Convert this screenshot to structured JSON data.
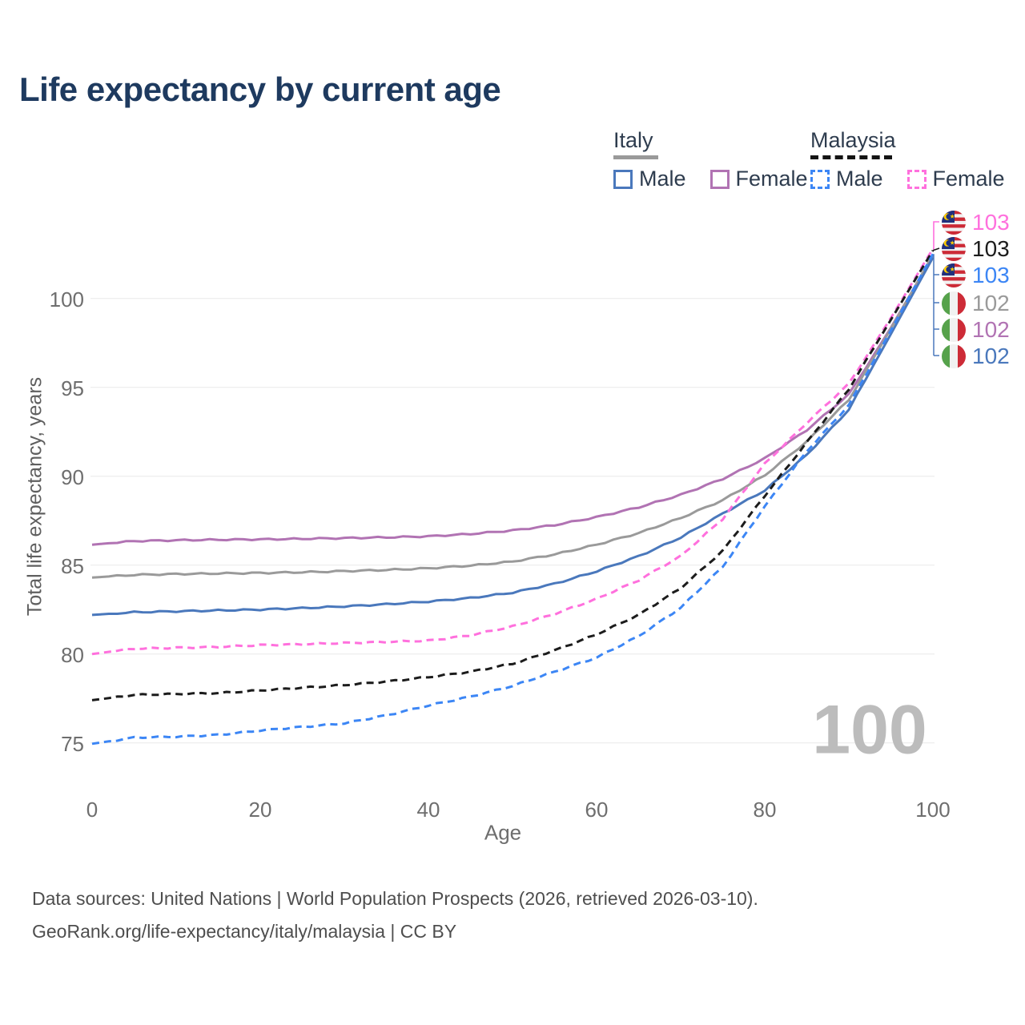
{
  "title": "Life expectancy by current age",
  "legend": {
    "italy": {
      "label": "Italy",
      "male": "Male",
      "female": "Female"
    },
    "malaysia": {
      "label": "Malaysia",
      "male": "Male",
      "female": "Female"
    }
  },
  "axes": {
    "y_title": "Total life expectancy, years",
    "x_title": "Age",
    "y_tick_labels": [
      "100",
      "95",
      "90",
      "85",
      "80",
      "75"
    ],
    "x_tick_labels": [
      "0",
      "20",
      "40",
      "60",
      "80",
      "100"
    ]
  },
  "watermark": "100",
  "end_labels": [
    {
      "value": "103",
      "series": "Malaysia Female",
      "flag": "malaysia",
      "color": "#ff70dd"
    },
    {
      "value": "103",
      "series": "Malaysia All",
      "flag": "malaysia",
      "color": "#1c1c1c"
    },
    {
      "value": "103",
      "series": "Malaysia Male",
      "flag": "malaysia",
      "color": "#3c86f5"
    },
    {
      "value": "102",
      "series": "Italy All",
      "flag": "italy",
      "color": "#9a9a9a"
    },
    {
      "value": "102",
      "series": "Italy Female",
      "flag": "italy",
      "color": "#b173b3"
    },
    {
      "value": "102",
      "series": "Italy Male",
      "flag": "italy",
      "color": "#4a78bc"
    }
  ],
  "footer": {
    "line1": "Data sources: United Nations | World Population Prospects (2026, retrieved 2026-03-10).",
    "line2": "GeoRank.org/life-expectancy/italy/malaysia | CC BY"
  },
  "colors": {
    "title": "#1e3a5f",
    "italy_male": "#4a78bc",
    "italy_female": "#b173b3",
    "italy_all": "#9a9a9a",
    "malaysia_male": "#3c86f5",
    "malaysia_female": "#ff70dd",
    "malaysia_all": "#1c1c1c",
    "gridline": "#e9e9e9",
    "watermark": "#bcbcbc"
  },
  "chart_data": {
    "type": "line",
    "title": "Life expectancy by current age",
    "xlabel": "Age",
    "ylabel": "Total life expectancy, years",
    "x_ticks": [
      0,
      20,
      40,
      60,
      80,
      100
    ],
    "y_ticks": [
      75,
      80,
      85,
      90,
      95,
      100
    ],
    "xlim": [
      0,
      100
    ],
    "ylim": [
      72.5,
      104
    ],
    "grid": "horizontal-only",
    "legend_position": "top-right",
    "ages": [
      0,
      5,
      10,
      15,
      20,
      25,
      30,
      35,
      40,
      45,
      50,
      55,
      60,
      65,
      70,
      75,
      80,
      85,
      90,
      95,
      100
    ],
    "series": [
      {
        "name": "Italy Female",
        "country": "Italy",
        "sex": "Female",
        "line_style": "solid",
        "color": "#b173b3",
        "end_label": 102,
        "values": [
          86.15,
          86.35,
          86.4,
          86.43,
          86.45,
          86.48,
          86.52,
          86.56,
          86.62,
          86.75,
          86.95,
          87.25,
          87.7,
          88.25,
          88.95,
          89.85,
          91.0,
          92.6,
          94.6,
          98.35,
          102.4
        ]
      },
      {
        "name": "Italy All",
        "country": "Italy",
        "sex": "All",
        "line_style": "solid",
        "color": "#9a9a9a",
        "end_label": 102,
        "values": [
          84.3,
          84.45,
          84.5,
          84.53,
          84.56,
          84.6,
          84.66,
          84.73,
          84.82,
          84.97,
          85.2,
          85.6,
          86.15,
          86.8,
          87.65,
          88.65,
          90.05,
          91.95,
          94.3,
          98.3,
          102.45
        ]
      },
      {
        "name": "Italy Male",
        "country": "Italy",
        "sex": "Male",
        "line_style": "solid",
        "color": "#4a78bc",
        "end_label": 102,
        "values": [
          82.2,
          82.35,
          82.4,
          82.45,
          82.5,
          82.58,
          82.68,
          82.8,
          82.95,
          83.15,
          83.45,
          83.95,
          84.65,
          85.5,
          86.55,
          87.9,
          89.2,
          91.2,
          93.75,
          98.0,
          102.3
        ]
      },
      {
        "name": "Malaysia Female",
        "country": "Malaysia",
        "sex": "Female",
        "line_style": "dashed",
        "color": "#ff70dd",
        "end_label": 103,
        "values": [
          80.0,
          80.3,
          80.35,
          80.4,
          80.5,
          80.55,
          80.62,
          80.68,
          80.75,
          81.05,
          81.55,
          82.25,
          83.1,
          84.15,
          85.5,
          87.6,
          90.7,
          93.0,
          95.2,
          98.9,
          102.8
        ]
      },
      {
        "name": "Malaysia All",
        "country": "Malaysia",
        "sex": "All",
        "line_style": "dashed",
        "color": "#1c1c1c",
        "end_label": 103,
        "values": [
          77.4,
          77.7,
          77.75,
          77.8,
          77.95,
          78.1,
          78.25,
          78.45,
          78.7,
          79.0,
          79.45,
          80.2,
          81.1,
          82.2,
          83.7,
          85.8,
          88.9,
          91.9,
          94.9,
          98.8,
          102.7
        ]
      },
      {
        "name": "Malaysia Male",
        "country": "Malaysia",
        "sex": "Male",
        "line_style": "dashed",
        "color": "#3c86f5",
        "end_label": 103,
        "values": [
          74.95,
          75.3,
          75.35,
          75.45,
          75.7,
          75.9,
          76.1,
          76.55,
          77.1,
          77.6,
          78.2,
          79.0,
          79.8,
          81.0,
          82.6,
          84.9,
          88.3,
          91.4,
          94.0,
          98.2,
          102.5
        ]
      }
    ]
  }
}
